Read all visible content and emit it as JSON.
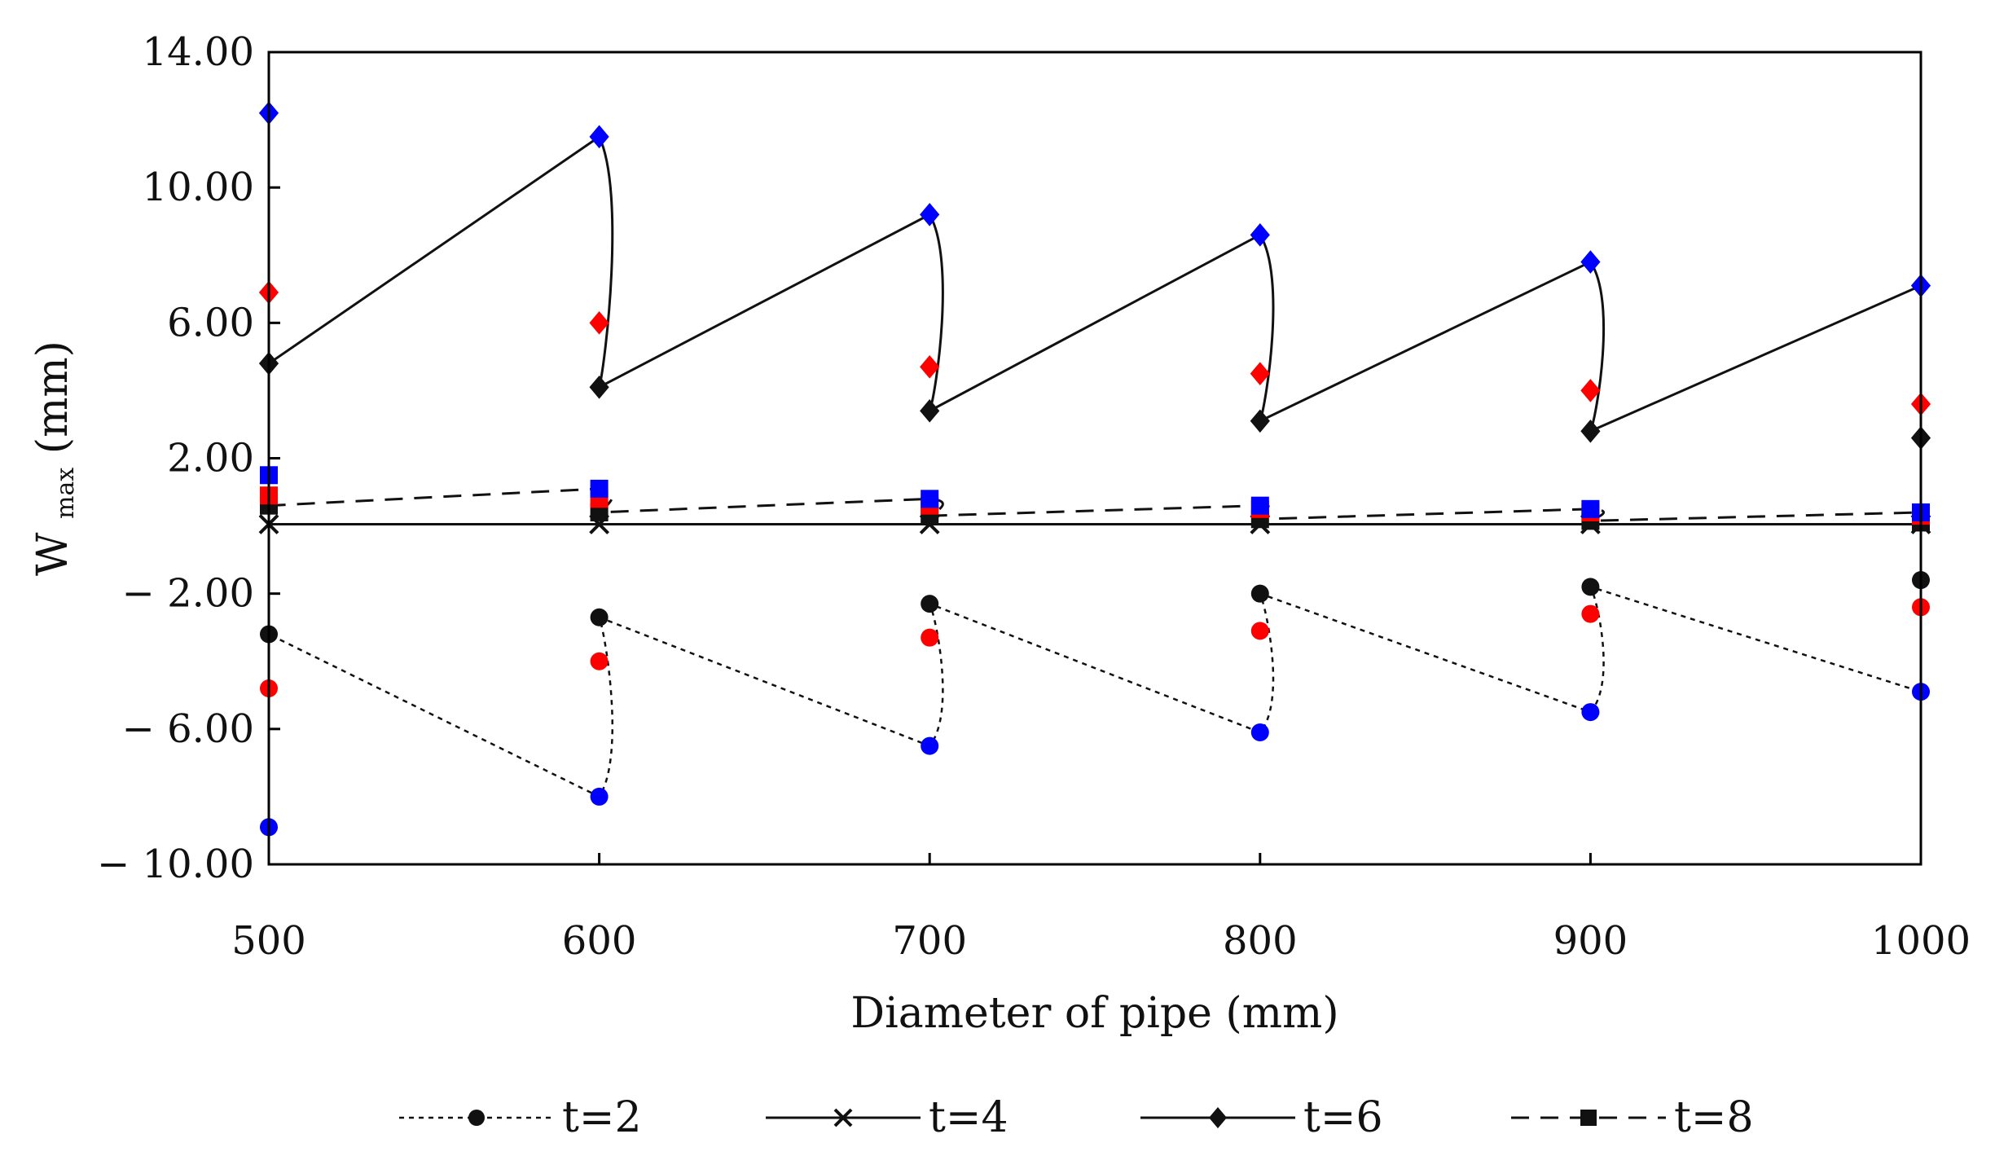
{
  "chart_data": {
    "type": "line",
    "title": "",
    "xlabel": "Diameter of pipe (mm)",
    "ylabel_main": "W",
    "ylabel_sub": "max",
    "ylabel_unit": " (mm)",
    "xlim": [
      500,
      1000
    ],
    "ylim": [
      -10,
      14
    ],
    "x_ticks": [
      500,
      600,
      700,
      800,
      900,
      1000
    ],
    "x_tick_labels": [
      "500",
      "600",
      "700",
      "800",
      "900",
      "1000"
    ],
    "y_ticks": [
      14,
      10,
      6,
      2,
      -2,
      -6,
      -10
    ],
    "y_tick_labels": [
      "14.00",
      "10.00",
      "6.00",
      "2.00",
      "− 2.00",
      "− 6.00",
      "− 10.00"
    ],
    "grid": false,
    "legend_position": "bottom",
    "point_colors": [
      "#111111",
      "#ff0000",
      "#0000ff"
    ],
    "series": [
      {
        "name": "t=2",
        "line_style": "dotted",
        "marker": "circle",
        "groups": [
          {
            "x": 500,
            "values": [
              -3.2,
              -4.8,
              -8.9
            ]
          },
          {
            "x": 600,
            "values": [
              -2.7,
              -4.0,
              -8.0
            ]
          },
          {
            "x": 700,
            "values": [
              -2.3,
              -3.3,
              -6.5
            ]
          },
          {
            "x": 800,
            "values": [
              -2.0,
              -3.1,
              -6.1
            ]
          },
          {
            "x": 900,
            "values": [
              -1.8,
              -2.6,
              -5.5
            ]
          },
          {
            "x": 1000,
            "values": [
              -1.6,
              -2.4,
              -4.9
            ]
          }
        ]
      },
      {
        "name": "t=4",
        "line_style": "solid",
        "marker": "x",
        "values": [
          0.05,
          0.05,
          0.05,
          0.05,
          0.05,
          0.05
        ]
      },
      {
        "name": "t=6",
        "line_style": "solid",
        "marker": "diamond",
        "groups": [
          {
            "x": 500,
            "values": [
              4.8,
              6.9,
              12.2
            ]
          },
          {
            "x": 600,
            "values": [
              4.1,
              6.0,
              11.5
            ]
          },
          {
            "x": 700,
            "values": [
              3.4,
              4.7,
              9.2
            ]
          },
          {
            "x": 800,
            "values": [
              3.1,
              4.5,
              8.6
            ]
          },
          {
            "x": 900,
            "values": [
              2.8,
              4.0,
              7.8
            ]
          },
          {
            "x": 1000,
            "values": [
              2.6,
              3.6,
              7.1
            ]
          }
        ]
      },
      {
        "name": "t=8",
        "line_style": "dashed",
        "marker": "square",
        "groups": [
          {
            "x": 500,
            "values": [
              0.6,
              0.9,
              1.5
            ]
          },
          {
            "x": 600,
            "values": [
              0.4,
              0.8,
              1.1
            ]
          },
          {
            "x": 700,
            "values": [
              0.3,
              0.6,
              0.8
            ]
          },
          {
            "x": 800,
            "values": [
              0.2,
              0.5,
              0.6
            ]
          },
          {
            "x": 900,
            "values": [
              0.15,
              0.4,
              0.5
            ]
          },
          {
            "x": 1000,
            "values": [
              0.1,
              0.3,
              0.4
            ]
          }
        ]
      }
    ]
  }
}
